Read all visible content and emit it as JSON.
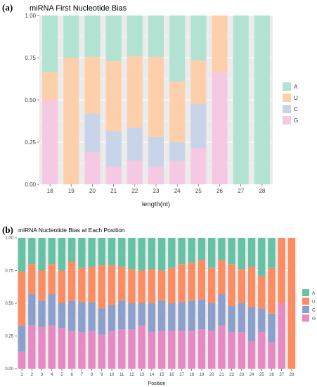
{
  "chart_data": [
    {
      "type": "bar",
      "stacked": true,
      "panel_label": "(a)",
      "title": "miRNA First Nucleotide Bias",
      "xlabel": "length(nt)",
      "ylabel": "",
      "ylim": [
        0,
        1
      ],
      "yticks": [
        "0.00",
        "0.25",
        "0.50",
        "0.75",
        "1.00"
      ],
      "categories": [
        "18",
        "19",
        "20",
        "21",
        "22",
        "23",
        "24",
        "25",
        "26",
        "27",
        "28"
      ],
      "series": [
        {
          "name": "G",
          "color": "#f6c9e2",
          "values": [
            0.5,
            0.0,
            0.19,
            0.105,
            0.14,
            0.105,
            0.14,
            0.215,
            0.665,
            0.0,
            0.0
          ]
        },
        {
          "name": "C",
          "color": "#c9d4e8",
          "values": [
            0.0,
            0.0,
            0.23,
            0.21,
            0.195,
            0.175,
            0.11,
            0.26,
            0.0,
            0.0,
            0.0
          ]
        },
        {
          "name": "U",
          "color": "#fdd0ab",
          "values": [
            0.165,
            0.75,
            0.335,
            0.415,
            0.425,
            0.475,
            0.36,
            0.26,
            0.335,
            0.0,
            0.0
          ]
        },
        {
          "name": "A",
          "color": "#b2e2d1",
          "values": [
            0.335,
            0.25,
            0.245,
            0.27,
            0.24,
            0.245,
            0.39,
            0.265,
            0.0,
            1.0,
            1.0
          ]
        }
      ],
      "legend_order": [
        "A",
        "U",
        "C",
        "G"
      ],
      "legend": "right",
      "grid": true
    },
    {
      "type": "bar",
      "stacked": true,
      "panel_label": "(b)",
      "title": "miRNA Nucleotide Bias at Each Position",
      "xlabel": "Position",
      "ylabel": "",
      "ylim": [
        0,
        1
      ],
      "yticks": [
        "0.00",
        "0.25",
        "0.50",
        "0.75",
        "1.00"
      ],
      "categories": [
        "1",
        "2",
        "3",
        "4",
        "5",
        "6",
        "7",
        "8",
        "9",
        "10",
        "11",
        "12",
        "13",
        "14",
        "15",
        "16",
        "17",
        "18",
        "19",
        "20",
        "21",
        "22",
        "23",
        "24",
        "25",
        "26",
        "27",
        "28"
      ],
      "series": [
        {
          "name": "G",
          "color": "#e78ac3",
          "values": [
            0.13,
            0.33,
            0.32,
            0.33,
            0.31,
            0.29,
            0.28,
            0.29,
            0.26,
            0.29,
            0.3,
            0.3,
            0.33,
            0.28,
            0.29,
            0.29,
            0.29,
            0.29,
            0.3,
            0.29,
            0.33,
            0.28,
            0.28,
            0.21,
            0.28,
            0.2,
            0.5,
            0.0
          ]
        },
        {
          "name": "C",
          "color": "#8da0cb",
          "values": [
            0.2,
            0.24,
            0.2,
            0.24,
            0.19,
            0.23,
            0.23,
            0.22,
            0.2,
            0.2,
            0.22,
            0.2,
            0.17,
            0.22,
            0.23,
            0.21,
            0.22,
            0.23,
            0.23,
            0.21,
            0.24,
            0.2,
            0.22,
            0.26,
            0.18,
            0.22,
            0.0,
            0.0
          ]
        },
        {
          "name": "U",
          "color": "#fc8d62",
          "values": [
            0.41,
            0.23,
            0.23,
            0.23,
            0.25,
            0.3,
            0.26,
            0.27,
            0.33,
            0.3,
            0.26,
            0.26,
            0.25,
            0.26,
            0.23,
            0.27,
            0.29,
            0.29,
            0.3,
            0.27,
            0.26,
            0.32,
            0.26,
            0.31,
            0.25,
            0.35,
            0.5,
            1.0
          ]
        },
        {
          "name": "A",
          "color": "#66c2a5",
          "values": [
            0.26,
            0.2,
            0.25,
            0.2,
            0.25,
            0.18,
            0.23,
            0.22,
            0.21,
            0.21,
            0.22,
            0.24,
            0.25,
            0.24,
            0.25,
            0.23,
            0.2,
            0.19,
            0.17,
            0.23,
            0.17,
            0.2,
            0.24,
            0.22,
            0.29,
            0.23,
            0.0,
            0.0
          ]
        }
      ],
      "legend_order": [
        "A",
        "U",
        "C",
        "G"
      ],
      "legend": "right",
      "grid": true
    }
  ]
}
